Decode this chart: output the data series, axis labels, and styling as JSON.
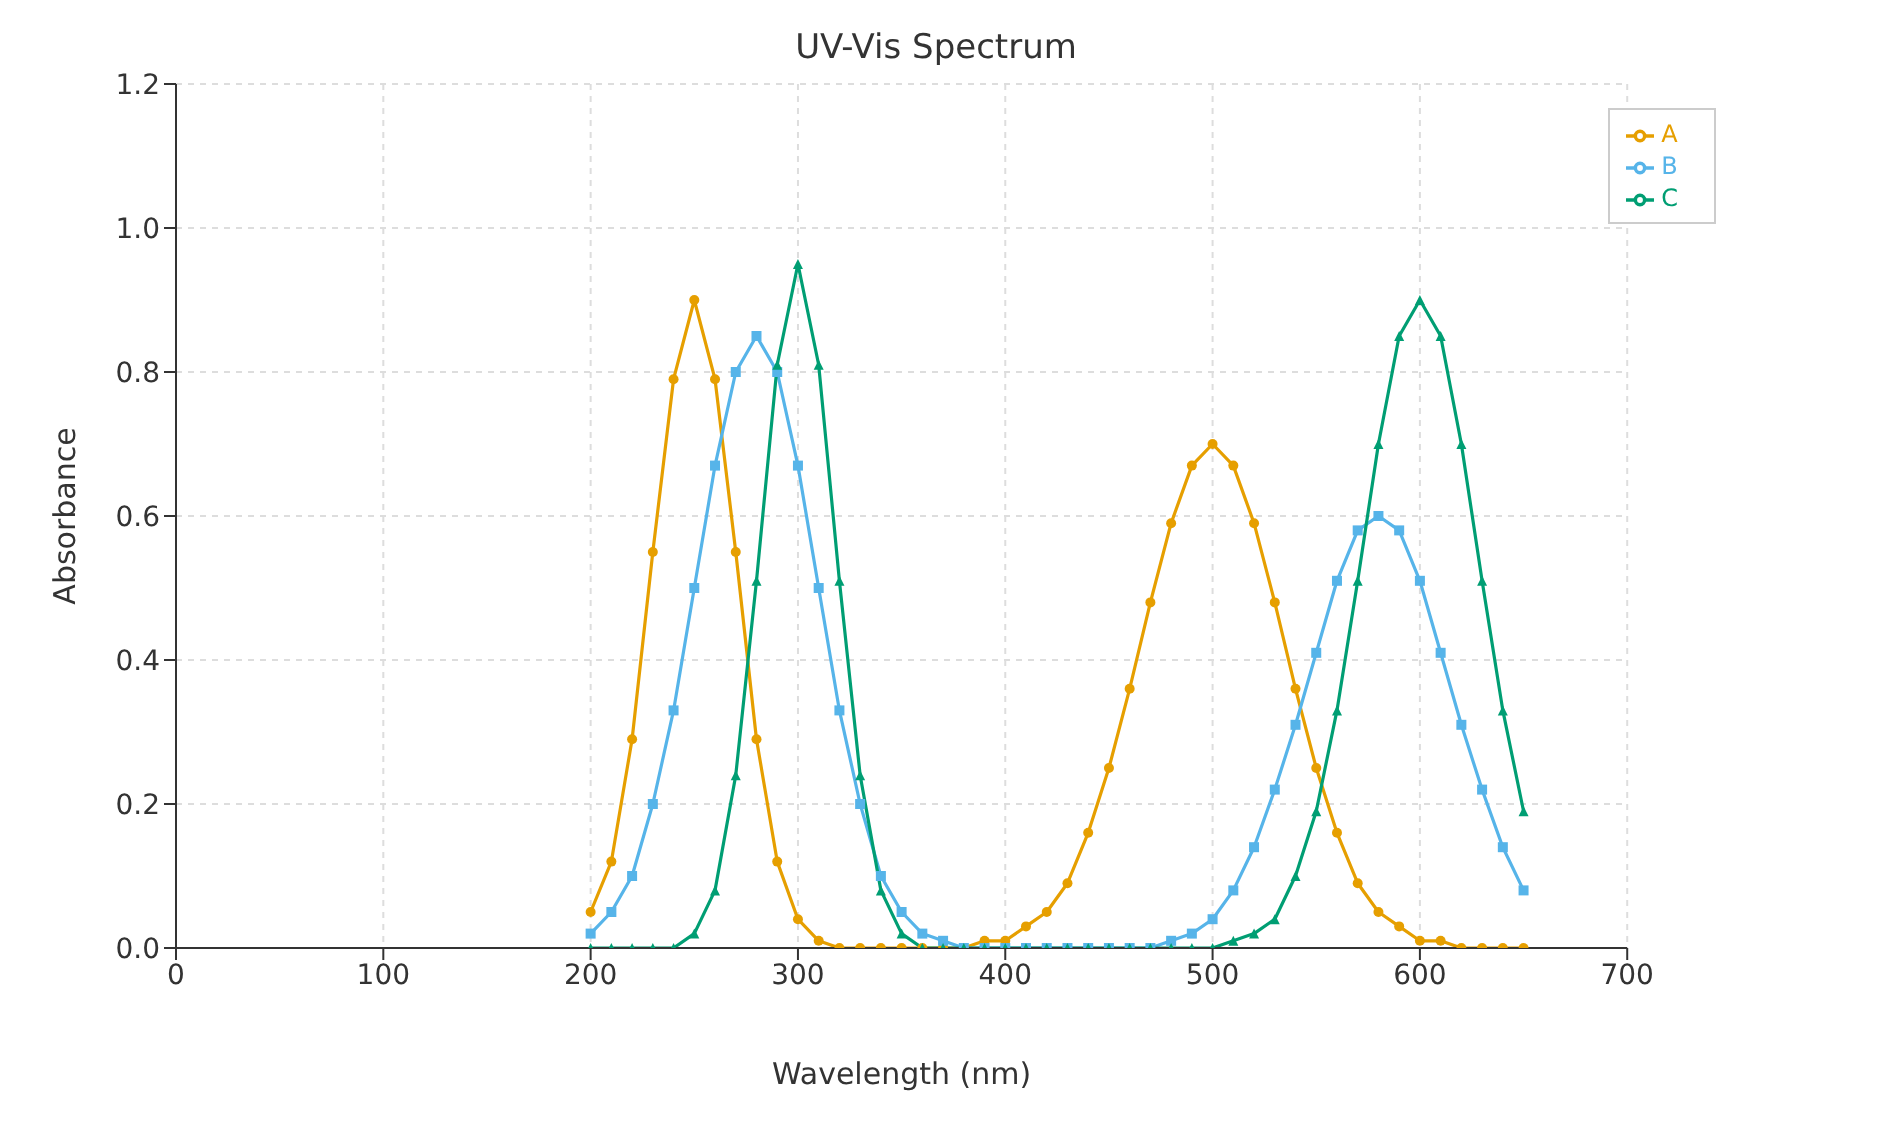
{
  "chart_data": {
    "type": "line",
    "title": "UV-Vis Spectrum",
    "xlabel": "Wavelength (nm)",
    "ylabel": "Absorbance",
    "x": [
      200,
      210,
      220,
      230,
      240,
      250,
      260,
      270,
      280,
      290,
      300,
      310,
      320,
      330,
      340,
      350,
      360,
      370,
      380,
      390,
      400,
      410,
      420,
      430,
      440,
      450,
      460,
      470,
      480,
      490,
      500,
      510,
      520,
      530,
      540,
      550,
      560,
      570,
      580,
      590,
      600,
      610,
      620,
      630,
      640,
      650
    ],
    "series": [
      {
        "name": "A",
        "color": "#e69f00",
        "marker": "circle",
        "values": [
          0.05,
          0.12,
          0.29,
          0.55,
          0.79,
          0.9,
          0.79,
          0.55,
          0.29,
          0.12,
          0.04,
          0.01,
          0,
          0,
          0,
          0,
          0,
          0,
          0,
          0.01,
          0.01,
          0.03,
          0.05,
          0.09,
          0.16,
          0.25,
          0.36,
          0.48,
          0.59,
          0.67,
          0.7,
          0.67,
          0.59,
          0.48,
          0.36,
          0.25,
          0.16,
          0.09,
          0.05,
          0.03,
          0.01,
          0.01,
          0,
          0,
          0,
          0
        ]
      },
      {
        "name": "B",
        "color": "#56b4e9",
        "marker": "square",
        "values": [
          0.02,
          0.05,
          0.1,
          0.2,
          0.33,
          0.5,
          0.67,
          0.8,
          0.85,
          0.8,
          0.67,
          0.5,
          0.33,
          0.2,
          0.1,
          0.05,
          0.02,
          0.01,
          0,
          0,
          0,
          0,
          0,
          0,
          0,
          0,
          0,
          0,
          0.01,
          0.02,
          0.04,
          0.08,
          0.14,
          0.22,
          0.31,
          0.41,
          0.51,
          0.58,
          0.6,
          0.58,
          0.51,
          0.41,
          0.31,
          0.22,
          0.14,
          0.08
        ]
      },
      {
        "name": "C",
        "color": "#009e73",
        "marker": "triangle",
        "values": [
          0,
          0,
          0,
          0,
          0,
          0.02,
          0.08,
          0.24,
          0.51,
          0.81,
          0.95,
          0.81,
          0.51,
          0.24,
          0.08,
          0.02,
          0,
          0,
          0,
          0,
          0,
          0,
          0,
          0,
          0,
          0,
          0,
          0,
          0,
          0,
          0,
          0.01,
          0.02,
          0.04,
          0.1,
          0.19,
          0.33,
          0.51,
          0.7,
          0.85,
          0.9,
          0.85,
          0.7,
          0.51,
          0.33,
          0.19
        ]
      }
    ],
    "xlim": [
      0,
      700
    ],
    "xticks": [
      0,
      100,
      200,
      300,
      400,
      500,
      600,
      700
    ],
    "ylim": [
      0,
      1.2
    ],
    "yticks": [
      {
        "value": 0,
        "label": "0.0"
      },
      {
        "value": 0.2,
        "label": "0.2"
      },
      {
        "value": 0.4,
        "label": "0.4"
      },
      {
        "value": 0.6,
        "label": "0.6"
      },
      {
        "value": 0.8,
        "label": "0.8"
      },
      {
        "value": 1,
        "label": "1.0"
      },
      {
        "value": 1.2,
        "label": "1.2"
      }
    ],
    "grid": true,
    "legend": "top right",
    "line_style": "solid"
  }
}
